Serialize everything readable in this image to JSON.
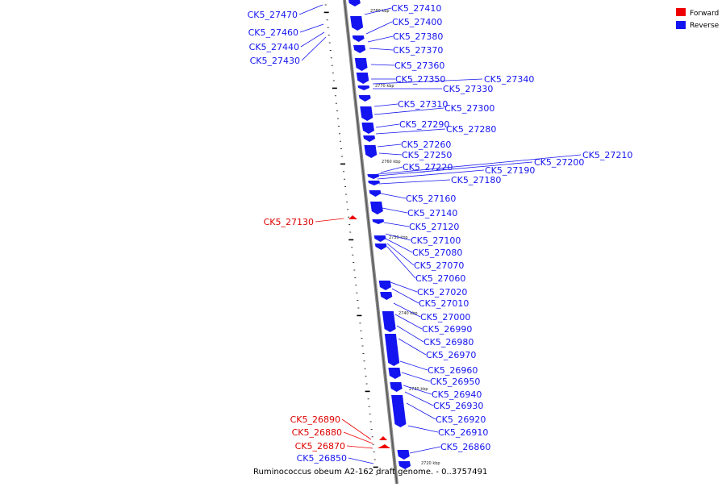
{
  "title": "Ruminococcus obeum A2-162 draft genome. - 0..3757491",
  "legend": [
    {
      "label": "Forward",
      "color": "#ee0000"
    },
    {
      "label": "Reverse",
      "color": "#1414f0"
    }
  ],
  "scale_labels": [
    "2780 kbp",
    "2770 kbp",
    "2760 kbp",
    "2750 kbp",
    "2740 kbp",
    "2730 kbp",
    "2720 kbp"
  ],
  "genes_left": [
    {
      "name": "CK5_27470",
      "strand": "reverse"
    },
    {
      "name": "CK5_27460",
      "strand": "reverse"
    },
    {
      "name": "CK5_27440",
      "strand": "reverse"
    },
    {
      "name": "CK5_27430",
      "strand": "reverse"
    },
    {
      "name": "CK5_27130",
      "strand": "forward"
    },
    {
      "name": "CK5_26890",
      "strand": "forward"
    },
    {
      "name": "CK5_26880",
      "strand": "forward"
    },
    {
      "name": "CK5_26870",
      "strand": "forward"
    },
    {
      "name": "CK5_26850",
      "strand": "reverse"
    }
  ],
  "genes_right": [
    {
      "name": "CK5_27410",
      "strand": "reverse"
    },
    {
      "name": "CK5_27400",
      "strand": "reverse"
    },
    {
      "name": "CK5_27380",
      "strand": "reverse"
    },
    {
      "name": "CK5_27370",
      "strand": "reverse"
    },
    {
      "name": "CK5_27360",
      "strand": "reverse"
    },
    {
      "name": "CK5_27350",
      "strand": "reverse"
    },
    {
      "name": "CK5_27340",
      "strand": "reverse"
    },
    {
      "name": "CK5_27330",
      "strand": "reverse"
    },
    {
      "name": "CK5_27310",
      "strand": "reverse"
    },
    {
      "name": "CK5_27300",
      "strand": "reverse"
    },
    {
      "name": "CK5_27290",
      "strand": "reverse"
    },
    {
      "name": "CK5_27280",
      "strand": "reverse"
    },
    {
      "name": "CK5_27260",
      "strand": "reverse"
    },
    {
      "name": "CK5_27250",
      "strand": "reverse"
    },
    {
      "name": "CK5_27220",
      "strand": "reverse"
    },
    {
      "name": "CK5_27210",
      "strand": "reverse"
    },
    {
      "name": "CK5_27200",
      "strand": "reverse"
    },
    {
      "name": "CK5_27190",
      "strand": "reverse"
    },
    {
      "name": "CK5_27180",
      "strand": "reverse"
    },
    {
      "name": "CK5_27160",
      "strand": "reverse"
    },
    {
      "name": "CK5_27140",
      "strand": "reverse"
    },
    {
      "name": "CK5_27120",
      "strand": "reverse"
    },
    {
      "name": "CK5_27100",
      "strand": "reverse"
    },
    {
      "name": "CK5_27080",
      "strand": "reverse"
    },
    {
      "name": "CK5_27070",
      "strand": "reverse"
    },
    {
      "name": "CK5_27060",
      "strand": "reverse"
    },
    {
      "name": "CK5_27020",
      "strand": "reverse"
    },
    {
      "name": "CK5_27010",
      "strand": "reverse"
    },
    {
      "name": "CK5_27000",
      "strand": "reverse"
    },
    {
      "name": "CK5_26990",
      "strand": "reverse"
    },
    {
      "name": "CK5_26980",
      "strand": "reverse"
    },
    {
      "name": "CK5_26970",
      "strand": "reverse"
    },
    {
      "name": "CK5_26960",
      "strand": "reverse"
    },
    {
      "name": "CK5_26950",
      "strand": "reverse"
    },
    {
      "name": "CK5_26940",
      "strand": "reverse"
    },
    {
      "name": "CK5_26930",
      "strand": "reverse"
    },
    {
      "name": "CK5_26920",
      "strand": "reverse"
    },
    {
      "name": "CK5_26910",
      "strand": "reverse"
    },
    {
      "name": "CK5_26860",
      "strand": "reverse"
    }
  ]
}
